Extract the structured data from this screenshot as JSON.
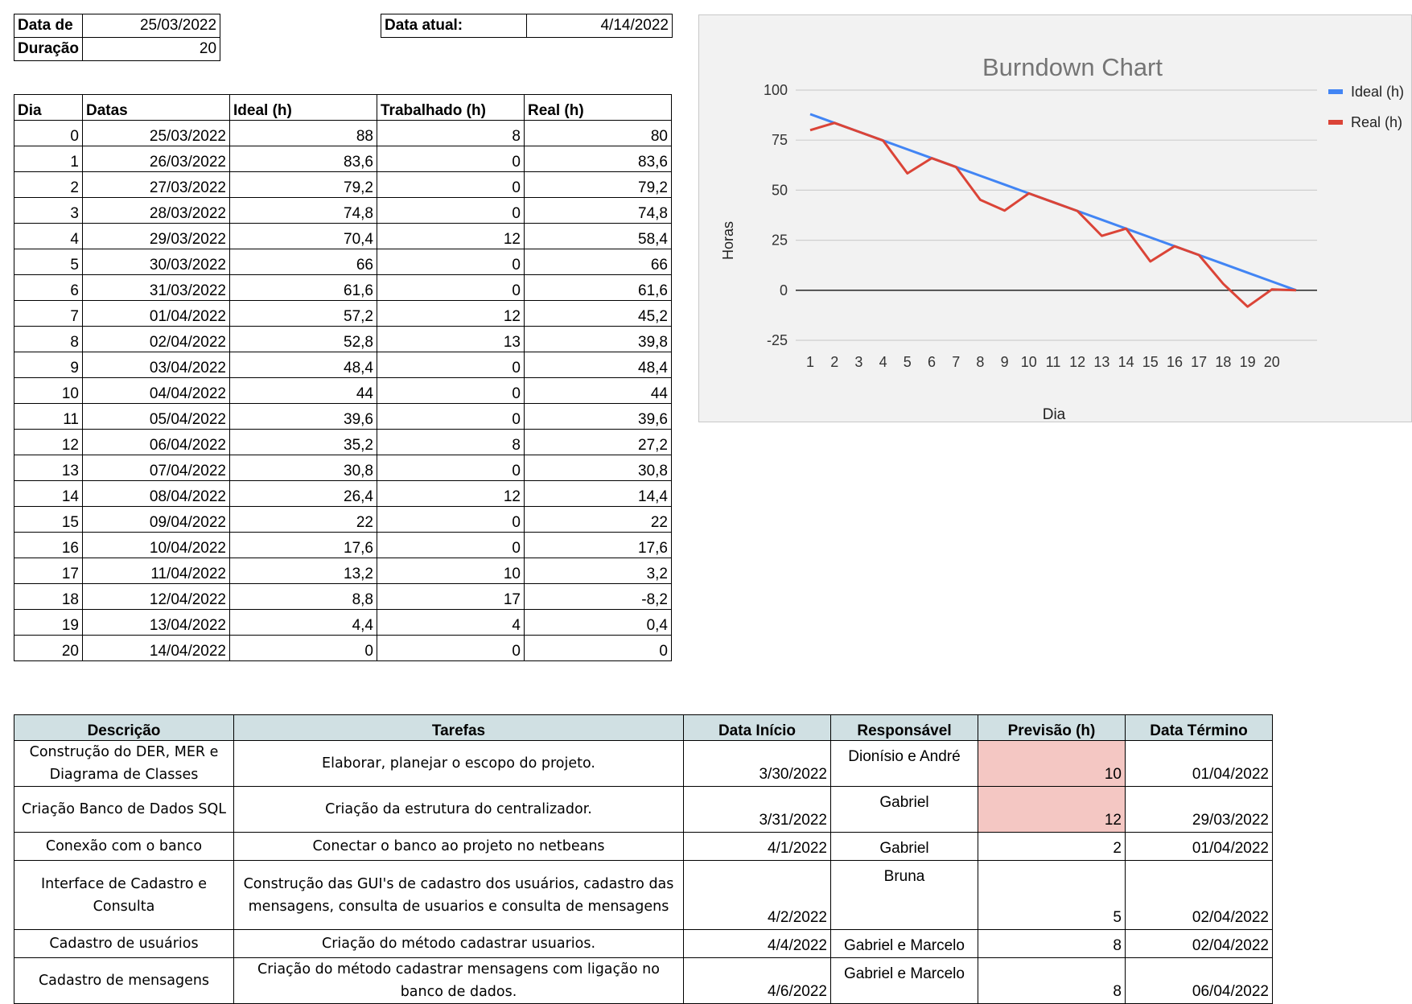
{
  "project": {
    "start_label": "Data de",
    "start_value": "25/03/2022",
    "duration_label": "Duração",
    "duration_value": "20",
    "current_label": "Data atual:",
    "current_value": "4/14/2022"
  },
  "sprint": {
    "headers": [
      "Dia",
      "Datas",
      "Ideal (h)",
      "Trabalhado (h)",
      "Real (h)"
    ],
    "rows": [
      [
        "0",
        "25/03/2022",
        "88",
        "8",
        "80"
      ],
      [
        "1",
        "26/03/2022",
        "83,6",
        "0",
        "83,6"
      ],
      [
        "2",
        "27/03/2022",
        "79,2",
        "0",
        "79,2"
      ],
      [
        "3",
        "28/03/2022",
        "74,8",
        "0",
        "74,8"
      ],
      [
        "4",
        "29/03/2022",
        "70,4",
        "12",
        "58,4"
      ],
      [
        "5",
        "30/03/2022",
        "66",
        "0",
        "66"
      ],
      [
        "6",
        "31/03/2022",
        "61,6",
        "0",
        "61,6"
      ],
      [
        "7",
        "01/04/2022",
        "57,2",
        "12",
        "45,2"
      ],
      [
        "8",
        "02/04/2022",
        "52,8",
        "13",
        "39,8"
      ],
      [
        "9",
        "03/04/2022",
        "48,4",
        "0",
        "48,4"
      ],
      [
        "10",
        "04/04/2022",
        "44",
        "0",
        "44"
      ],
      [
        "11",
        "05/04/2022",
        "39,6",
        "0",
        "39,6"
      ],
      [
        "12",
        "06/04/2022",
        "35,2",
        "8",
        "27,2"
      ],
      [
        "13",
        "07/04/2022",
        "30,8",
        "0",
        "30,8"
      ],
      [
        "14",
        "08/04/2022",
        "26,4",
        "12",
        "14,4"
      ],
      [
        "15",
        "09/04/2022",
        "22",
        "0",
        "22"
      ],
      [
        "16",
        "10/04/2022",
        "17,6",
        "0",
        "17,6"
      ],
      [
        "17",
        "11/04/2022",
        "13,2",
        "10",
        "3,2"
      ],
      [
        "18",
        "12/04/2022",
        "8,8",
        "17",
        "-8,2"
      ],
      [
        "19",
        "13/04/2022",
        "4,4",
        "4",
        "0,4"
      ],
      [
        "20",
        "14/04/2022",
        "0",
        "0",
        "0"
      ]
    ]
  },
  "tasks": {
    "headers": [
      "Descrição",
      "Tarefas",
      "Data Início",
      "Responsável",
      "Previsão (h)",
      "Data Término"
    ],
    "rows": [
      {
        "descricao": "Construção do DER, MER e Diagrama de Classes",
        "tarefa": "Elaborar, planejar o escopo do projeto.",
        "inicio": "3/30/2022",
        "responsavel": "Dionísio e André",
        "previsao": "10",
        "termino": "01/04/2022",
        "highlight": true
      },
      {
        "descricao": "Criação Banco de Dados SQL",
        "tarefa": "Criação da estrutura do centralizador.",
        "inicio": "3/31/2022",
        "responsavel": "Gabriel",
        "previsao": "12",
        "termino": "29/03/2022",
        "highlight": true
      },
      {
        "descricao": "Conexão com o banco",
        "tarefa": "Conectar o banco ao projeto no netbeans",
        "inicio": "4/1/2022",
        "responsavel": "Gabriel",
        "previsao": "2",
        "termino": "01/04/2022",
        "highlight": false
      },
      {
        "descricao": "Interface de Cadastro e Consulta",
        "tarefa": "Construção das GUI's de cadastro dos usuários, cadastro das mensagens, consulta de usuarios e consulta de mensagens",
        "inicio": "4/2/2022",
        "responsavel": "Bruna",
        "previsao": "5",
        "termino": "02/04/2022",
        "highlight": false
      },
      {
        "descricao": "Cadastro de usuários",
        "tarefa": "Criação do método cadastrar usuarios.",
        "inicio": "4/4/2022",
        "responsavel": "Gabriel e Marcelo",
        "previsao": "8",
        "termino": "02/04/2022",
        "highlight": false
      },
      {
        "descricao": "Cadastro de mensagens",
        "tarefa": "Criação do método cadastrar mensagens com ligação no banco de dados.",
        "inicio": "4/6/2022",
        "responsavel": "Gabriel e Marcelo",
        "previsao": "8",
        "termino": "06/04/2022",
        "highlight": false
      }
    ]
  },
  "chart_data": {
    "type": "line",
    "title": "Burndown Chart",
    "xlabel": "Dia",
    "ylabel": "Horas",
    "categories": [
      "1",
      "2",
      "3",
      "4",
      "5",
      "6",
      "7",
      "8",
      "9",
      "10",
      "11",
      "12",
      "13",
      "14",
      "15",
      "16",
      "17",
      "18",
      "19",
      "20",
      ""
    ],
    "ylim": [
      -25,
      100
    ],
    "yticks": [
      "100",
      "75",
      "50",
      "25",
      "0",
      "-25"
    ],
    "grid": true,
    "legend_position": "right",
    "series": [
      {
        "name": "Ideal (h)",
        "color": "#4285f4",
        "values": [
          88,
          83.6,
          79.2,
          74.8,
          70.4,
          66,
          61.6,
          57.2,
          52.8,
          48.4,
          44,
          39.6,
          35.2,
          30.8,
          26.4,
          22,
          17.6,
          13.2,
          8.8,
          4.4,
          0
        ]
      },
      {
        "name": "Real (h)",
        "color": "#db4437",
        "values": [
          80,
          83.6,
          79.2,
          74.8,
          58.4,
          66,
          61.6,
          45.2,
          39.8,
          48.4,
          44,
          39.6,
          27.2,
          30.8,
          14.4,
          22,
          17.6,
          3.2,
          -8.2,
          0.4,
          0
        ]
      }
    ]
  }
}
